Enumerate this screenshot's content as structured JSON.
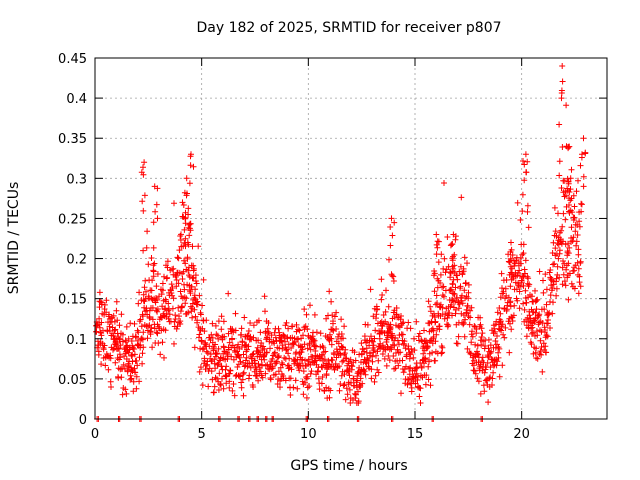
{
  "chart_data": {
    "type": "scatter",
    "title": "Day 182 of 2025, SRMTID for receiver p807",
    "xlabel": "GPS time / hours",
    "ylabel": "SRMTID / TECUs",
    "xlim": [
      0,
      24
    ],
    "ylim": [
      0,
      0.45
    ],
    "xticks": [
      0,
      5,
      10,
      15,
      20
    ],
    "xtick_labels": [
      "0",
      "5",
      "10",
      "15",
      "20"
    ],
    "yticks": [
      0,
      0.05,
      0.1,
      0.15,
      0.2,
      0.25,
      0.3,
      0.35,
      0.4,
      0.45
    ],
    "ytick_labels": [
      "0",
      "0.05",
      "0.1",
      "0.15",
      "0.2",
      "0.25",
      "0.3",
      "0.35",
      "0.4",
      "0.45"
    ],
    "grid": true,
    "marker": "+",
    "series": [
      {
        "name": "SRMTID",
        "color": "#ff0000",
        "trend": [
          [
            0.0,
            0.1
          ],
          [
            0.3,
            0.11
          ],
          [
            0.6,
            0.1
          ],
          [
            1.0,
            0.085
          ],
          [
            1.5,
            0.07
          ],
          [
            2.0,
            0.085
          ],
          [
            2.3,
            0.13
          ],
          [
            2.6,
            0.13
          ],
          [
            3.0,
            0.14
          ],
          [
            3.5,
            0.14
          ],
          [
            4.0,
            0.17
          ],
          [
            4.3,
            0.18
          ],
          [
            4.6,
            0.16
          ],
          [
            5.0,
            0.1
          ],
          [
            5.3,
            0.07
          ],
          [
            6.0,
            0.08
          ],
          [
            7.0,
            0.07
          ],
          [
            7.5,
            0.07
          ],
          [
            8.0,
            0.09
          ],
          [
            8.5,
            0.08
          ],
          [
            9.0,
            0.08
          ],
          [
            9.5,
            0.08
          ],
          [
            10.0,
            0.08
          ],
          [
            10.5,
            0.07
          ],
          [
            11.0,
            0.085
          ],
          [
            11.5,
            0.08
          ],
          [
            12.0,
            0.05
          ],
          [
            12.3,
            0.045
          ],
          [
            12.8,
            0.08
          ],
          [
            13.3,
            0.1
          ],
          [
            13.8,
            0.11
          ],
          [
            14.3,
            0.09
          ],
          [
            14.8,
            0.065
          ],
          [
            15.3,
            0.07
          ],
          [
            15.8,
            0.1
          ],
          [
            16.2,
            0.14
          ],
          [
            16.7,
            0.16
          ],
          [
            17.2,
            0.15
          ],
          [
            17.6,
            0.12
          ],
          [
            18.0,
            0.085
          ],
          [
            18.4,
            0.065
          ],
          [
            18.8,
            0.09
          ],
          [
            19.2,
            0.14
          ],
          [
            19.6,
            0.16
          ],
          [
            20.0,
            0.18
          ],
          [
            20.4,
            0.12
          ],
          [
            20.8,
            0.11
          ],
          [
            21.2,
            0.12
          ],
          [
            21.6,
            0.2
          ],
          [
            22.0,
            0.22
          ],
          [
            22.4,
            0.23
          ],
          [
            22.8,
            0.22
          ]
        ],
        "spikes": [
          [
            2.3,
            0.32
          ],
          [
            2.8,
            0.29
          ],
          [
            4.1,
            0.27
          ],
          [
            4.3,
            0.3
          ],
          [
            4.5,
            0.33
          ],
          [
            13.9,
            0.25
          ],
          [
            16.0,
            0.23
          ],
          [
            16.8,
            0.23
          ],
          [
            19.5,
            0.22
          ],
          [
            20.2,
            0.33
          ],
          [
            21.9,
            0.44
          ],
          [
            22.1,
            0.34
          ],
          [
            22.3,
            0.3
          ],
          [
            22.9,
            0.35
          ]
        ],
        "zero_points": [
          0.1,
          1.1,
          2.1,
          3.9,
          5.8,
          6.7,
          7.2,
          7.6,
          8.0,
          8.3,
          9.9,
          10.9,
          12.3,
          13.9,
          15.8,
          18.1
        ]
      }
    ]
  }
}
